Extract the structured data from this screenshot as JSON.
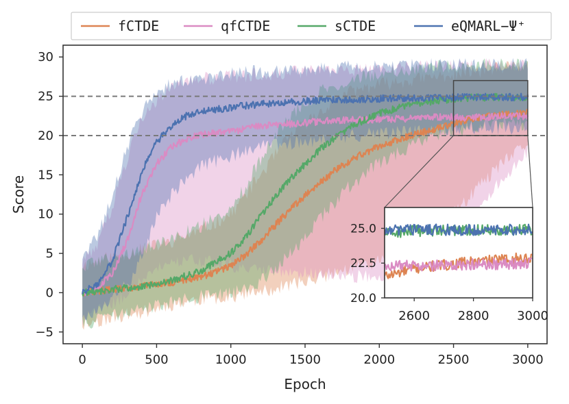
{
  "chart_data": {
    "type": "line",
    "title": "",
    "xlabel": "Epoch",
    "ylabel": "Score",
    "xlim": [
      -130,
      3130
    ],
    "ylim": [
      -6.5,
      31.5
    ],
    "xticks": [
      0,
      500,
      1000,
      1500,
      2000,
      2500,
      3000
    ],
    "yticks": [
      -5,
      0,
      5,
      10,
      15,
      20,
      25,
      30
    ],
    "reference_lines": [
      20,
      25
    ],
    "legend_position": "top (above plot)",
    "series": [
      {
        "name": "fCTDE",
        "color": "#dd8452",
        "x": [
          0,
          200,
          400,
          600,
          800,
          1000,
          1100,
          1200,
          1300,
          1400,
          1500,
          1600,
          1700,
          1800,
          1900,
          2000,
          2200,
          2400,
          2600,
          2800,
          3000
        ],
        "mean": [
          0.0,
          0.4,
          0.8,
          1.3,
          2.0,
          3.4,
          4.8,
          6.6,
          8.6,
          10.6,
          12.4,
          14.0,
          15.5,
          16.8,
          17.8,
          18.6,
          19.9,
          21.0,
          22.1,
          22.6,
          22.9
        ],
        "lower": [
          -4.0,
          -3.2,
          -2.5,
          -1.5,
          -0.8,
          -0.5,
          -0.2,
          0.0,
          0.5,
          1.0,
          1.5,
          2.0,
          2.5,
          3.0,
          3.5,
          4.0,
          5.5,
          8.0,
          12.0,
          16.0,
          19.0
        ],
        "upper": [
          3.5,
          4.5,
          5.5,
          6.5,
          8.0,
          10.0,
          12.5,
          15.0,
          17.5,
          20.0,
          21.5,
          23.0,
          24.5,
          25.5,
          26.0,
          26.5,
          27.0,
          27.5,
          28.0,
          28.5,
          29.0
        ]
      },
      {
        "name": "qfCTDE",
        "color": "#da8bc3",
        "x": [
          0,
          100,
          200,
          300,
          350,
          400,
          500,
          600,
          700,
          800,
          1000,
          1200,
          1400,
          1600,
          1800,
          2000,
          2200,
          2400,
          2600,
          2800,
          3000
        ],
        "mean": [
          0.0,
          0.5,
          2.5,
          6.5,
          9.5,
          12.5,
          16.5,
          18.5,
          19.6,
          20.1,
          20.5,
          21.2,
          21.5,
          21.8,
          22.0,
          22.0,
          22.2,
          22.4,
          22.3,
          22.4,
          22.5
        ],
        "lower": [
          -3.5,
          -2.5,
          -1.5,
          0.0,
          1.0,
          2.0,
          3.0,
          3.5,
          4.0,
          4.0,
          3.5,
          3.0,
          2.5,
          2.5,
          2.0,
          2.0,
          2.5,
          3.0,
          8.0,
          14.0,
          18.0
        ],
        "upper": [
          4.0,
          6.0,
          11.0,
          17.0,
          20.0,
          22.5,
          24.5,
          26.0,
          26.8,
          27.2,
          27.5,
          27.8,
          28.0,
          28.2,
          28.4,
          28.5,
          28.6,
          28.8,
          28.9,
          29.0,
          29.0
        ]
      },
      {
        "name": "sCTDE",
        "color": "#55a868",
        "x": [
          0,
          200,
          400,
          600,
          800,
          1000,
          1100,
          1200,
          1300,
          1400,
          1500,
          1600,
          1700,
          1800,
          1900,
          2000,
          2200,
          2400,
          2600,
          2800,
          3000
        ],
        "mean": [
          0.0,
          0.4,
          0.8,
          1.5,
          2.8,
          5.0,
          7.0,
          9.8,
          12.2,
          14.5,
          16.4,
          18.2,
          19.7,
          21.0,
          22.0,
          22.8,
          23.9,
          24.5,
          24.8,
          24.9,
          24.9
        ],
        "lower": [
          -4.0,
          -3.0,
          -2.2,
          -1.2,
          -0.5,
          0.0,
          0.5,
          1.5,
          3.0,
          5.0,
          7.0,
          9.5,
          11.5,
          13.5,
          15.0,
          16.5,
          18.5,
          20.0,
          21.0,
          21.5,
          21.5
        ],
        "upper": [
          3.5,
          4.5,
          5.5,
          7.0,
          8.5,
          11.0,
          13.5,
          17.0,
          20.0,
          22.5,
          24.0,
          25.5,
          26.5,
          27.0,
          27.5,
          28.0,
          28.5,
          28.8,
          29.0,
          29.0,
          29.0
        ]
      },
      {
        "name": "eQMARL−Ψ⁺",
        "color": "#4c72b0",
        "x": [
          0,
          100,
          200,
          300,
          350,
          400,
          450,
          500,
          600,
          700,
          800,
          1000,
          1200,
          1400,
          1600,
          1800,
          2000,
          2200,
          2400,
          2600,
          2800,
          3000
        ],
        "mean": [
          0.0,
          1.0,
          4.0,
          9.5,
          12.5,
          15.2,
          17.5,
          19.2,
          21.3,
          22.5,
          23.0,
          23.6,
          24.0,
          24.3,
          24.5,
          24.6,
          24.7,
          24.8,
          24.8,
          24.9,
          24.9,
          24.9
        ],
        "lower": [
          -3.5,
          -2.5,
          -1.0,
          1.0,
          2.5,
          4.5,
          7.0,
          9.5,
          12.5,
          14.5,
          16.0,
          17.5,
          18.5,
          19.0,
          19.5,
          20.0,
          20.2,
          20.5,
          20.8,
          21.0,
          21.0,
          21.0
        ],
        "upper": [
          4.5,
          7.0,
          12.0,
          18.5,
          21.0,
          23.0,
          24.5,
          25.5,
          26.5,
          27.0,
          27.3,
          27.8,
          28.2,
          28.4,
          28.6,
          28.7,
          28.8,
          28.9,
          29.0,
          29.0,
          29.0,
          29.0
        ]
      }
    ],
    "inset": {
      "xlim": [
        2500,
        3000
      ],
      "ylim": [
        20.0,
        26.5
      ],
      "xticks": [
        2600,
        2800,
        3000
      ],
      "yticks": [
        20.0,
        22.5,
        25.0
      ],
      "ytick_labels": [
        "20.0",
        "22.5",
        "25.0"
      ],
      "zoom_region": {
        "x": [
          2500,
          3000
        ],
        "y": [
          20,
          27
        ]
      }
    }
  }
}
